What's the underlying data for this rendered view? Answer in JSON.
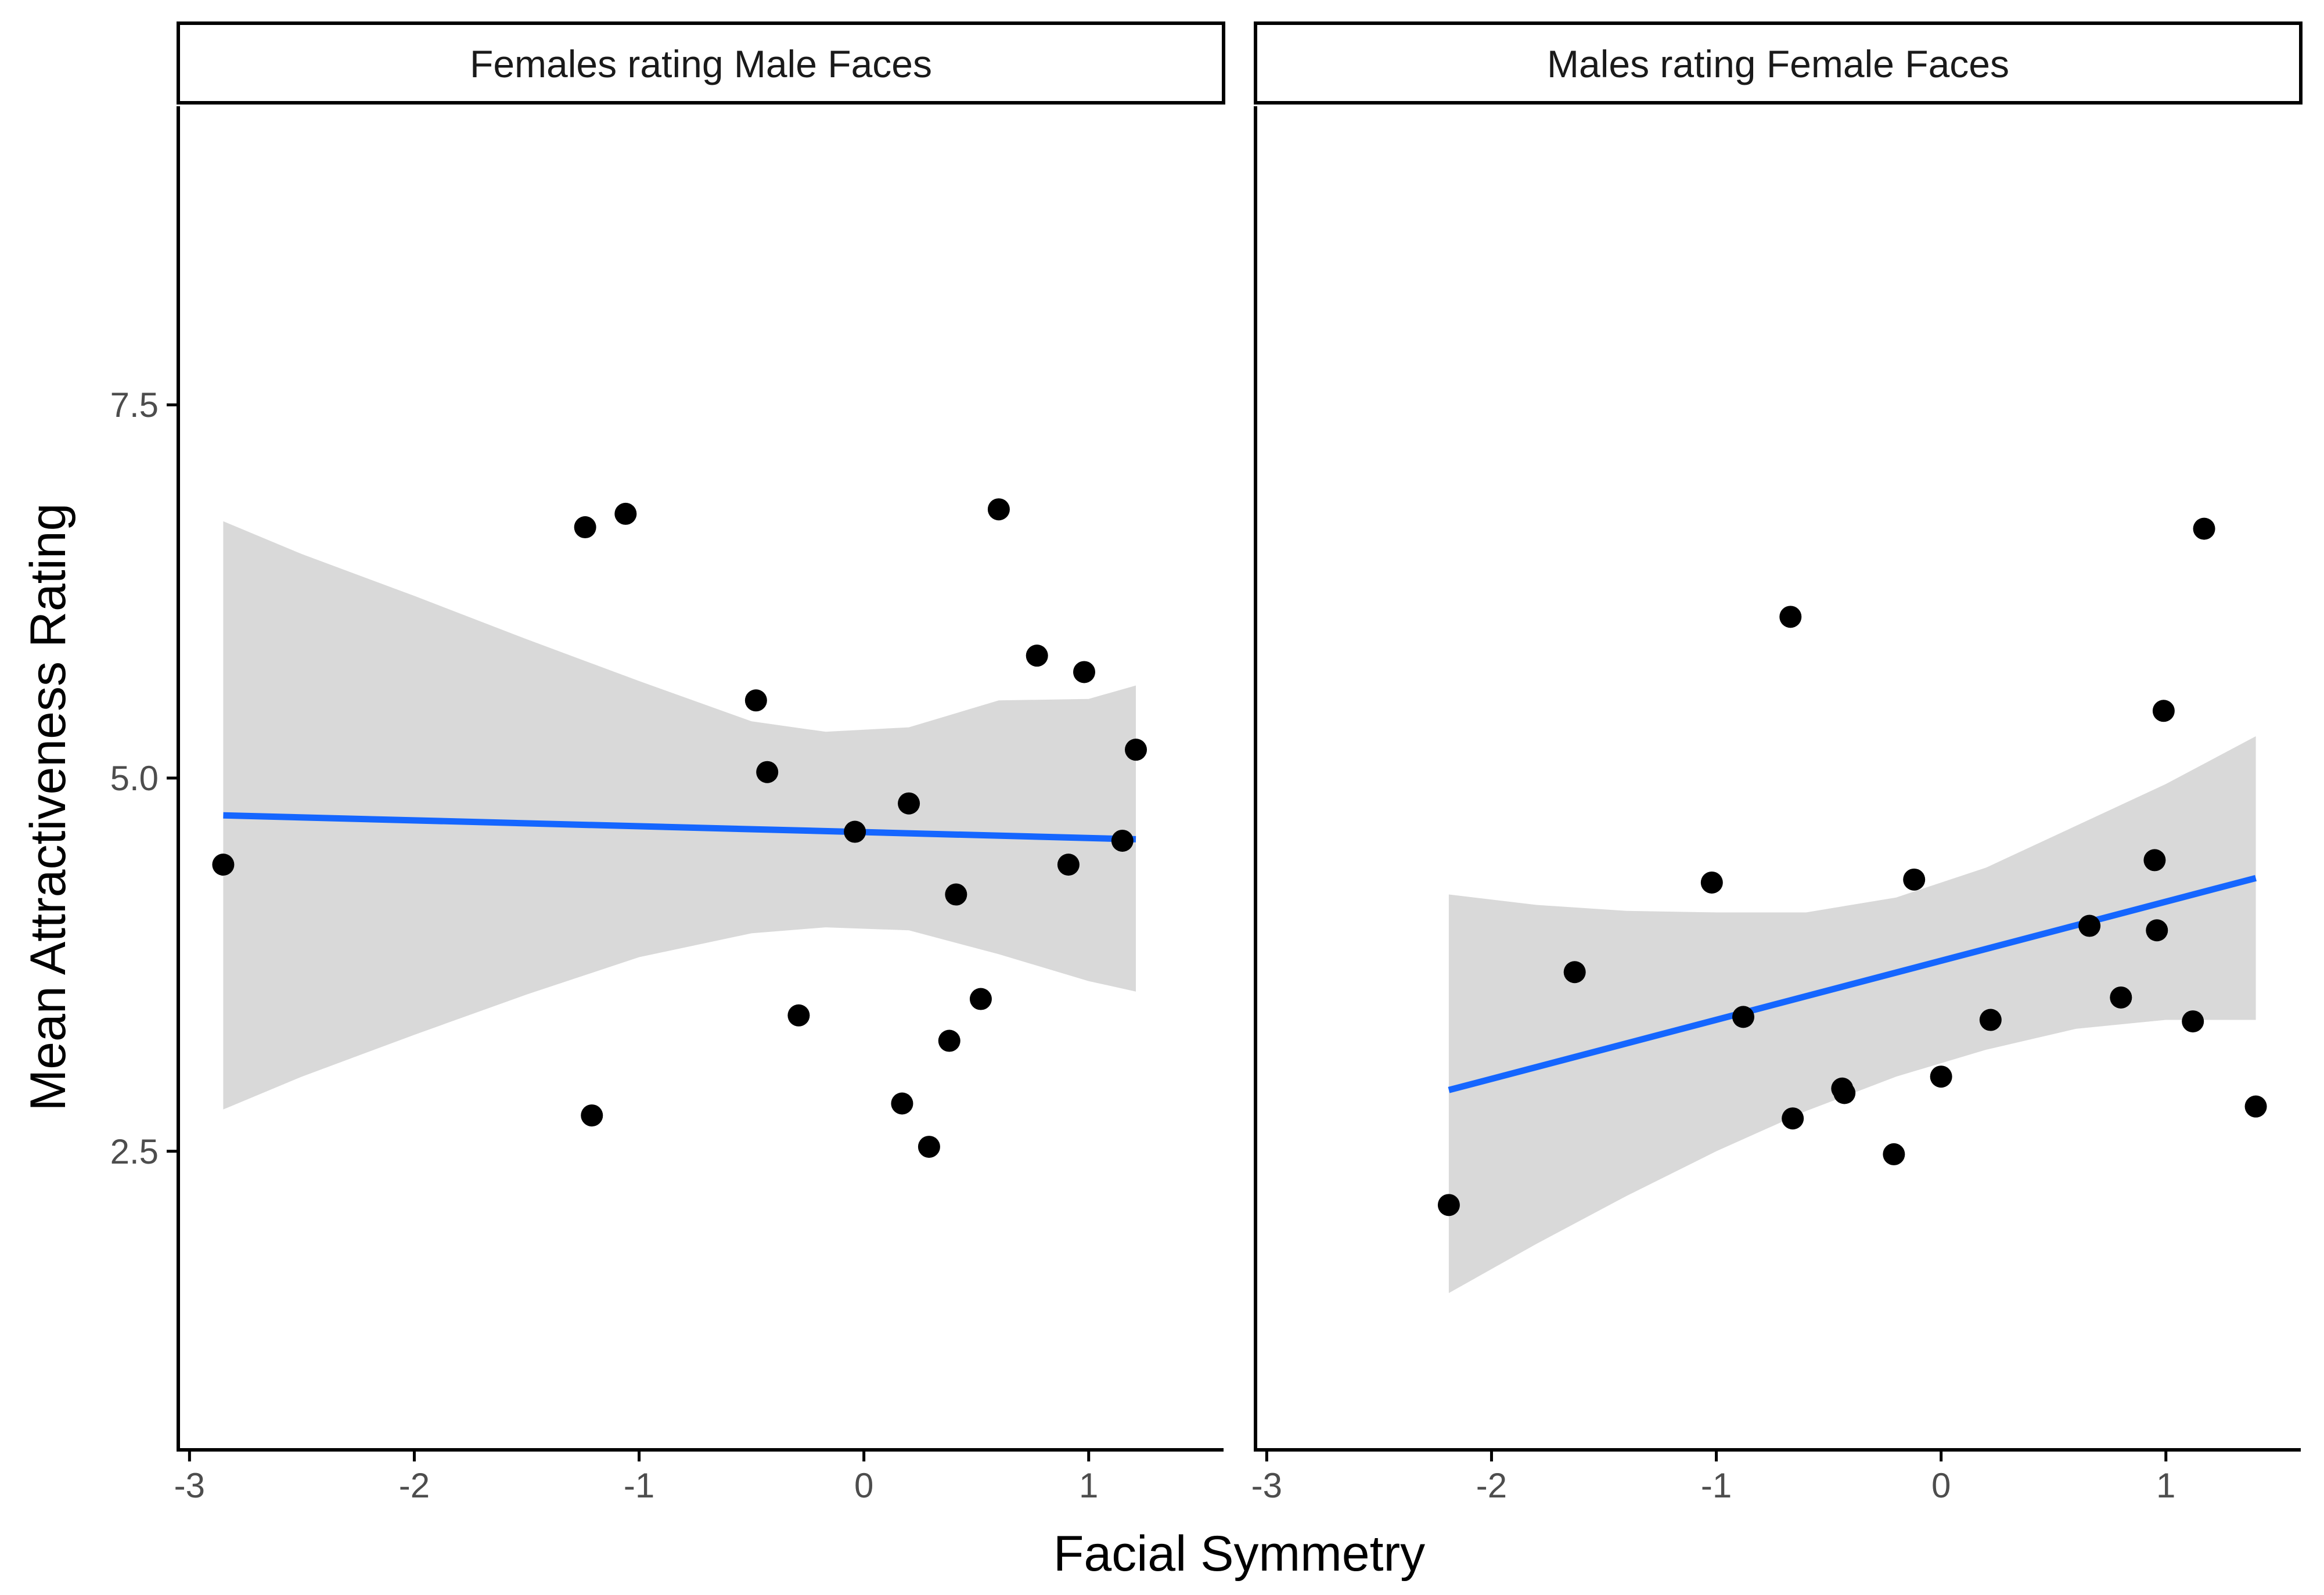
{
  "colors": {
    "point": "#000000",
    "fit_line": "#1566FF",
    "ribbon": "#D9D9D9",
    "axis": "#000000",
    "tick_text": "#4d4d4d",
    "background": "#ffffff"
  },
  "chart_data": {
    "type": "scatter",
    "xlabel": "Facial Symmetry",
    "ylabel": "Mean Attractiveness Rating",
    "xlim": [
      -3.05,
      1.6
    ],
    "ylim": [
      0.5,
      9.5
    ],
    "x_ticks": [
      -3,
      -2,
      -1,
      0,
      1
    ],
    "x_tick_labels": [
      "-3",
      "-2",
      "-1",
      "0",
      "1"
    ],
    "y_ticks": [
      2.5,
      5.0,
      7.5
    ],
    "y_tick_labels": [
      "2.5",
      "5.0",
      "7.5"
    ],
    "grid": false,
    "panels": [
      {
        "title": "Females rating Male Faces",
        "points": [
          {
            "x": -2.85,
            "y": 4.42
          },
          {
            "x": -1.24,
            "y": 6.68
          },
          {
            "x": -1.06,
            "y": 6.77
          },
          {
            "x": -1.21,
            "y": 2.74
          },
          {
            "x": -0.48,
            "y": 5.52
          },
          {
            "x": -0.43,
            "y": 5.04
          },
          {
            "x": -0.29,
            "y": 3.41
          },
          {
            "x": -0.04,
            "y": 4.64
          },
          {
            "x": 0.17,
            "y": 2.82
          },
          {
            "x": 0.2,
            "y": 4.83
          },
          {
            "x": 0.29,
            "y": 2.53
          },
          {
            "x": 0.38,
            "y": 3.24
          },
          {
            "x": 0.41,
            "y": 4.22
          },
          {
            "x": 0.52,
            "y": 3.52
          },
          {
            "x": 0.6,
            "y": 6.8
          },
          {
            "x": 0.77,
            "y": 5.82
          },
          {
            "x": 0.91,
            "y": 4.42
          },
          {
            "x": 0.98,
            "y": 5.71
          },
          {
            "x": 1.15,
            "y": 4.58
          },
          {
            "x": 1.21,
            "y": 5.19
          }
        ],
        "fit": {
          "x": [
            -2.85,
            1.21
          ],
          "y": [
            4.75,
            4.59
          ]
        },
        "ribbon": {
          "x": [
            -2.85,
            -2.5,
            -2.0,
            -1.5,
            -1.0,
            -0.5,
            -0.17,
            0.2,
            0.6,
            1.0,
            1.21
          ],
          "lower": [
            2.78,
            3.0,
            3.28,
            3.55,
            3.8,
            3.96,
            4.0,
            3.98,
            3.82,
            3.64,
            3.57
          ],
          "upper": [
            6.72,
            6.5,
            6.22,
            5.93,
            5.65,
            5.38,
            5.31,
            5.34,
            5.52,
            5.53,
            5.62
          ]
        }
      },
      {
        "title": "Males rating Female Faces",
        "points": [
          {
            "x": -2.19,
            "y": 2.14
          },
          {
            "x": -1.63,
            "y": 3.7
          },
          {
            "x": -1.02,
            "y": 4.3
          },
          {
            "x": -0.88,
            "y": 3.4
          },
          {
            "x": -0.67,
            "y": 6.08
          },
          {
            "x": -0.66,
            "y": 2.72
          },
          {
            "x": -0.44,
            "y": 2.92
          },
          {
            "x": -0.43,
            "y": 2.89
          },
          {
            "x": -0.21,
            "y": 2.48
          },
          {
            "x": -0.12,
            "y": 4.32
          },
          {
            "x": 0.0,
            "y": 3.0
          },
          {
            "x": 0.22,
            "y": 3.38
          },
          {
            "x": 0.66,
            "y": 4.01
          },
          {
            "x": 0.8,
            "y": 3.53
          },
          {
            "x": 0.95,
            "y": 4.45
          },
          {
            "x": 0.96,
            "y": 3.98
          },
          {
            "x": 0.99,
            "y": 5.45
          },
          {
            "x": 1.12,
            "y": 3.37
          },
          {
            "x": 1.17,
            "y": 6.67
          },
          {
            "x": 1.4,
            "y": 2.8
          }
        ],
        "fit": {
          "x": [
            -2.19,
            1.4
          ],
          "y": [
            2.91,
            4.33
          ]
        },
        "ribbon": {
          "x": [
            -2.19,
            -1.8,
            -1.4,
            -1.0,
            -0.6,
            -0.2,
            0.2,
            0.6,
            1.0,
            1.4
          ],
          "lower": [
            1.55,
            1.88,
            2.2,
            2.5,
            2.77,
            3.0,
            3.18,
            3.32,
            3.38,
            3.38
          ],
          "upper": [
            4.22,
            4.15,
            4.11,
            4.1,
            4.1,
            4.2,
            4.4,
            4.68,
            4.96,
            5.28
          ]
        }
      }
    ]
  }
}
